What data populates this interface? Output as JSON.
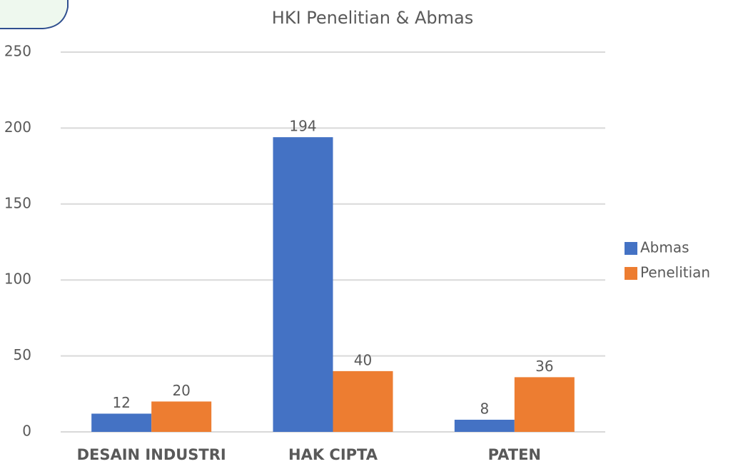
{
  "chart_data": {
    "type": "bar",
    "title": "HKI Penelitian & Abmas",
    "categories": [
      "DESAIN INDUSTRI",
      "HAK CIPTA",
      "PATEN"
    ],
    "series": [
      {
        "name": "Abmas",
        "color": "#4472c4",
        "values": [
          12,
          194,
          8
        ]
      },
      {
        "name": "Penelitian",
        "color": "#ed7d31",
        "values": [
          20,
          40,
          36
        ]
      }
    ],
    "ylim": [
      0,
      250
    ],
    "yticks": [
      0,
      50,
      100,
      150,
      200,
      250
    ],
    "grid": true,
    "legend": "right"
  }
}
